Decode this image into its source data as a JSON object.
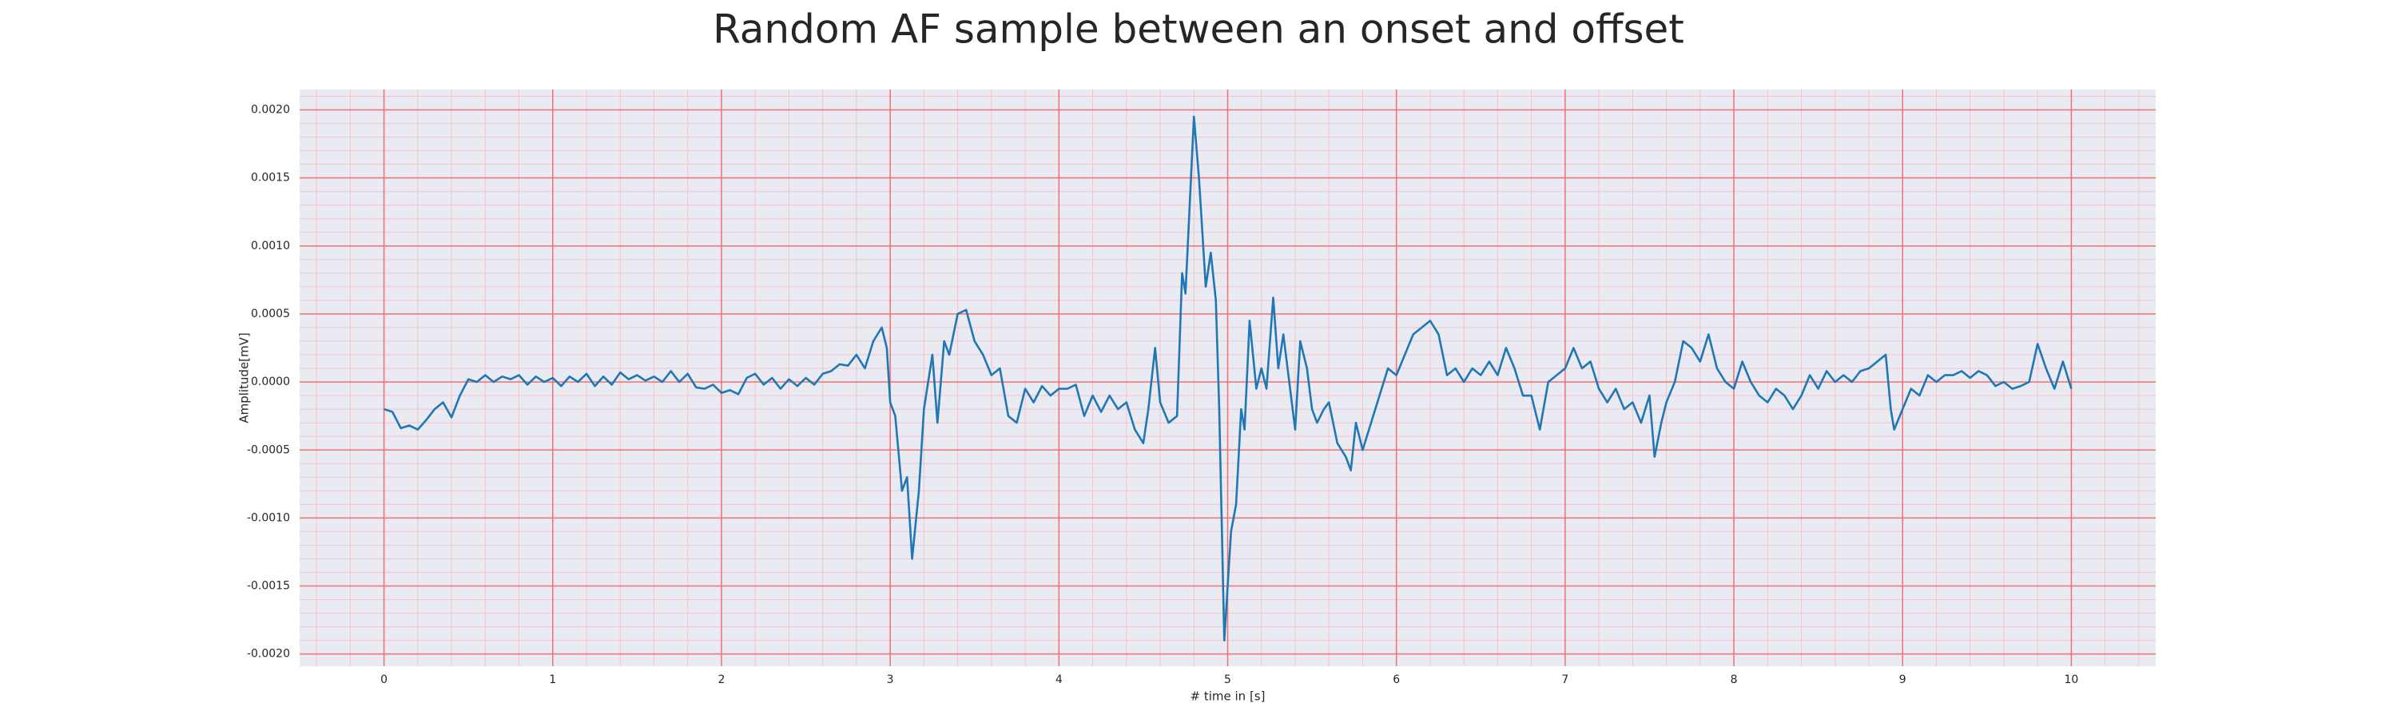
{
  "chart_data": {
    "type": "line",
    "title": "Random AF sample between an onset and offset",
    "xlabel": "# time in [s]",
    "ylabel": "Amplitude[mV]",
    "color": "#1f77b4",
    "grid": true,
    "grid_color": "#f07070",
    "minor_grid_color": "#f2c4cc",
    "background": "#eaeaf2",
    "xlim": [
      -0.5,
      10.5
    ],
    "ylim": [
      -0.00209,
      0.00215
    ],
    "xticks": [
      0,
      1,
      2,
      3,
      4,
      5,
      6,
      7,
      8,
      9,
      10
    ],
    "yticks": [
      {
        "value": -0.002,
        "label": "-0.0020"
      },
      {
        "value": -0.0015,
        "label": "-0.0015"
      },
      {
        "value": -0.001,
        "label": "-0.0010"
      },
      {
        "value": -0.0005,
        "label": "-0.0005"
      },
      {
        "value": 0,
        "label": "0.0000"
      },
      {
        "value": 0.0005,
        "label": "0.0005"
      },
      {
        "value": 0.001,
        "label": "0.0010"
      },
      {
        "value": 0.0015,
        "label": "0.0015"
      },
      {
        "value": 0.002,
        "label": "0.0020"
      }
    ],
    "minor_xticks": [
      -0.4,
      -0.2,
      0.2,
      0.4,
      0.6,
      0.8,
      1.2,
      1.4,
      1.6,
      1.8,
      2.2,
      2.4,
      2.6,
      2.8,
      3.2,
      3.4,
      3.6,
      3.8,
      4.2,
      4.4,
      4.6,
      4.8,
      5.2,
      5.4,
      5.6,
      5.8,
      6.2,
      6.4,
      6.6,
      6.8,
      7.2,
      7.4,
      7.6,
      7.8,
      8.2,
      8.4,
      8.6,
      8.8,
      9.2,
      9.4,
      9.6,
      9.8,
      10.2,
      10.4
    ],
    "minor_yticks": [
      -0.0019,
      -0.0018,
      -0.0017,
      -0.0016,
      -0.0014,
      -0.0013,
      -0.0012,
      -0.0011,
      -0.0009,
      -0.0008,
      -0.0007,
      -0.0006,
      -0.0004,
      -0.0003,
      -0.0002,
      -0.0001,
      0.0001,
      0.0002,
      0.0003,
      0.0004,
      0.0006,
      0.0007,
      0.0008,
      0.0009,
      0.0011,
      0.0012,
      0.0013,
      0.0014,
      0.0016,
      0.0017,
      0.0018,
      0.0019,
      0.0021
    ],
    "x": [
      0,
      0.05,
      0.1,
      0.15,
      0.2,
      0.25,
      0.3,
      0.35,
      0.4,
      0.45,
      0.5,
      0.55,
      0.6,
      0.65,
      0.7,
      0.75,
      0.8,
      0.85,
      0.9,
      0.95,
      1,
      1.05,
      1.1,
      1.15,
      1.2,
      1.25,
      1.3,
      1.35,
      1.4,
      1.45,
      1.5,
      1.55,
      1.6,
      1.65,
      1.7,
      1.75,
      1.8,
      1.85,
      1.9,
      1.95,
      2,
      2.05,
      2.1,
      2.15,
      2.2,
      2.25,
      2.3,
      2.35,
      2.4,
      2.45,
      2.5,
      2.55,
      2.6,
      2.65,
      2.7,
      2.75,
      2.8,
      2.85,
      2.9,
      2.95,
      2.98,
      3,
      3.03,
      3.07,
      3.1,
      3.13,
      3.17,
      3.2,
      3.25,
      3.28,
      3.32,
      3.35,
      3.4,
      3.45,
      3.5,
      3.55,
      3.6,
      3.65,
      3.7,
      3.75,
      3.8,
      3.85,
      3.9,
      3.95,
      4,
      4.05,
      4.1,
      4.15,
      4.2,
      4.25,
      4.3,
      4.35,
      4.4,
      4.45,
      4.5,
      4.53,
      4.57,
      4.6,
      4.65,
      4.7,
      4.73,
      4.75,
      4.8,
      4.83,
      4.87,
      4.9,
      4.93,
      4.95,
      4.98,
      5.02,
      5.05,
      5.08,
      5.1,
      5.13,
      5.17,
      5.2,
      5.23,
      5.27,
      5.3,
      5.33,
      5.37,
      5.4,
      5.43,
      5.47,
      5.5,
      5.53,
      5.57,
      5.6,
      5.65,
      5.7,
      5.73,
      5.76,
      5.8,
      5.85,
      5.9,
      5.95,
      6,
      6.05,
      6.1,
      6.15,
      6.2,
      6.25,
      6.3,
      6.35,
      6.4,
      6.45,
      6.5,
      6.55,
      6.6,
      6.65,
      6.7,
      6.75,
      6.8,
      6.85,
      6.9,
      6.95,
      7,
      7.05,
      7.1,
      7.15,
      7.2,
      7.25,
      7.3,
      7.35,
      7.4,
      7.45,
      7.5,
      7.53,
      7.57,
      7.6,
      7.65,
      7.7,
      7.75,
      7.8,
      7.85,
      7.9,
      7.95,
      8,
      8.05,
      8.1,
      8.15,
      8.2,
      8.25,
      8.3,
      8.35,
      8.4,
      8.45,
      8.5,
      8.55,
      8.6,
      8.65,
      8.7,
      8.75,
      8.8,
      8.85,
      8.9,
      8.93,
      8.95,
      9,
      9.05,
      9.1,
      9.15,
      9.2,
      9.25,
      9.3,
      9.35,
      9.4,
      9.45,
      9.5,
      9.55,
      9.6,
      9.65,
      9.7,
      9.75,
      9.8,
      9.85,
      9.9,
      9.95,
      10
    ],
    "values": [
      -0.0002,
      -0.00022,
      -0.00034,
      -0.00032,
      -0.00035,
      -0.00028,
      -0.0002,
      -0.00015,
      -0.00026,
      -0.0001,
      2e-05,
      0,
      5e-05,
      0,
      4e-05,
      2e-05,
      5e-05,
      -2e-05,
      4e-05,
      0,
      3e-05,
      -3e-05,
      4e-05,
      0,
      6e-05,
      -3e-05,
      4e-05,
      -2e-05,
      7e-05,
      2e-05,
      5e-05,
      1e-05,
      4e-05,
      0,
      8e-05,
      0,
      6e-05,
      -4e-05,
      -5e-05,
      -2e-05,
      -8e-05,
      -6e-05,
      -9e-05,
      3e-05,
      6e-05,
      -2e-05,
      3e-05,
      -5e-05,
      2e-05,
      -3e-05,
      3e-05,
      -2e-05,
      6e-05,
      8e-05,
      0.00013,
      0.00012,
      0.0002,
      0.0001,
      0.0003,
      0.0004,
      0.00025,
      -0.00015,
      -0.00025,
      -0.0008,
      -0.0007,
      -0.0013,
      -0.0008,
      -0.0002,
      0.0002,
      -0.0003,
      0.0003,
      0.0002,
      0.0005,
      0.00053,
      0.0003,
      0.0002,
      5e-05,
      0.0001,
      -0.00025,
      -0.0003,
      -5e-05,
      -0.00015,
      -3e-05,
      -0.0001,
      -5e-05,
      -5e-05,
      -2e-05,
      -0.00025,
      -0.0001,
      -0.00022,
      -0.0001,
      -0.0002,
      -0.00015,
      -0.00035,
      -0.00045,
      -0.0002,
      0.00025,
      -0.00015,
      -0.0003,
      -0.00025,
      0.0008,
      0.00065,
      0.00195,
      0.0015,
      0.0007,
      0.00095,
      0.0006,
      -0.0002,
      -0.0019,
      -0.0011,
      -0.0009,
      -0.0002,
      -0.00035,
      0.00045,
      -5e-05,
      0.0001,
      -5e-05,
      0.00062,
      0.0001,
      0.00035,
      -5e-05,
      -0.00035,
      0.0003,
      0.0001,
      -0.0002,
      -0.0003,
      -0.0002,
      -0.00015,
      -0.00045,
      -0.00055,
      -0.00065,
      -0.0003,
      -0.0005,
      -0.0003,
      -0.0001,
      0.0001,
      5e-05,
      0.0002,
      0.00035,
      0.0004,
      0.00045,
      0.00035,
      5e-05,
      0.0001,
      0,
      0.0001,
      5e-05,
      0.00015,
      5e-05,
      0.00025,
      0.0001,
      -0.0001,
      -0.0001,
      -0.00035,
      0,
      5e-05,
      0.0001,
      0.00025,
      0.0001,
      0.00015,
      -5e-05,
      -0.00015,
      -5e-05,
      -0.0002,
      -0.00015,
      -0.0003,
      -0.0001,
      -0.00055,
      -0.0003,
      -0.00015,
      0,
      0.0003,
      0.00025,
      0.00015,
      0.00035,
      0.0001,
      0,
      -5e-05,
      0.00015,
      0,
      -0.0001,
      -0.00015,
      -5e-05,
      -0.0001,
      -0.0002,
      -0.0001,
      5e-05,
      -5e-05,
      8e-05,
      0,
      5e-05,
      0,
      8e-05,
      0.0001,
      0.00015,
      0.0002,
      -0.0002,
      -0.00035,
      -0.0002,
      -5e-05,
      -0.0001,
      5e-05,
      0,
      5e-05,
      5e-05,
      8e-05,
      3e-05,
      8e-05,
      5e-05,
      -3e-05,
      0,
      -5e-05,
      -3e-05,
      0,
      0.00028,
      0.0001,
      -5e-05,
      0.00015,
      -5e-05
    ]
  }
}
